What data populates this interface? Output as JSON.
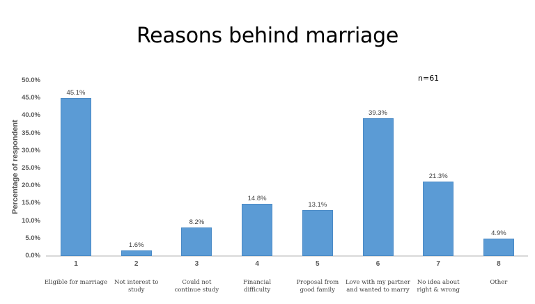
{
  "chart_data": {
    "type": "bar",
    "title": "Reasons behind marriage",
    "annotation": "n=61",
    "xlabel": "",
    "ylabel": "Percentage of respondent",
    "ylim": [
      0,
      50
    ],
    "yticks": [
      "0.0%",
      "5.0%",
      "10.0%",
      "15.0%",
      "20.0%",
      "25.0%",
      "30.0%",
      "35.0%",
      "40.0%",
      "45.0%",
      "50.0%"
    ],
    "grid": false,
    "legend": null,
    "categories": [
      "1",
      "2",
      "3",
      "4",
      "5",
      "6",
      "7",
      "8"
    ],
    "category_descriptions": [
      "Eligible for marriage",
      "Not interest to study",
      "Could not continue study",
      "Financial difficulty",
      "Proposal from good family",
      "Love with my partner and wanted to marry",
      "No idea about right & wrong",
      "Other"
    ],
    "values": [
      45.1,
      1.6,
      8.2,
      14.8,
      13.1,
      39.3,
      21.3,
      4.9
    ],
    "value_labels": [
      "45.1%",
      "1.6%",
      "8.2%",
      "14.8%",
      "13.1%",
      "39.3%",
      "21.3%",
      "4.9%"
    ],
    "bar_color": "#5b9bd5"
  },
  "desc_lines": [
    [
      "Eligible for marriage",
      ""
    ],
    [
      "Not interest to",
      "study"
    ],
    [
      "Could not",
      "continue study"
    ],
    [
      "Financial",
      "difficulty"
    ],
    [
      "Proposal from",
      "good family"
    ],
    [
      "Love with my partner",
      "and wanted to marry"
    ],
    [
      "No idea about",
      "right & wrong"
    ],
    [
      "Other",
      ""
    ]
  ]
}
